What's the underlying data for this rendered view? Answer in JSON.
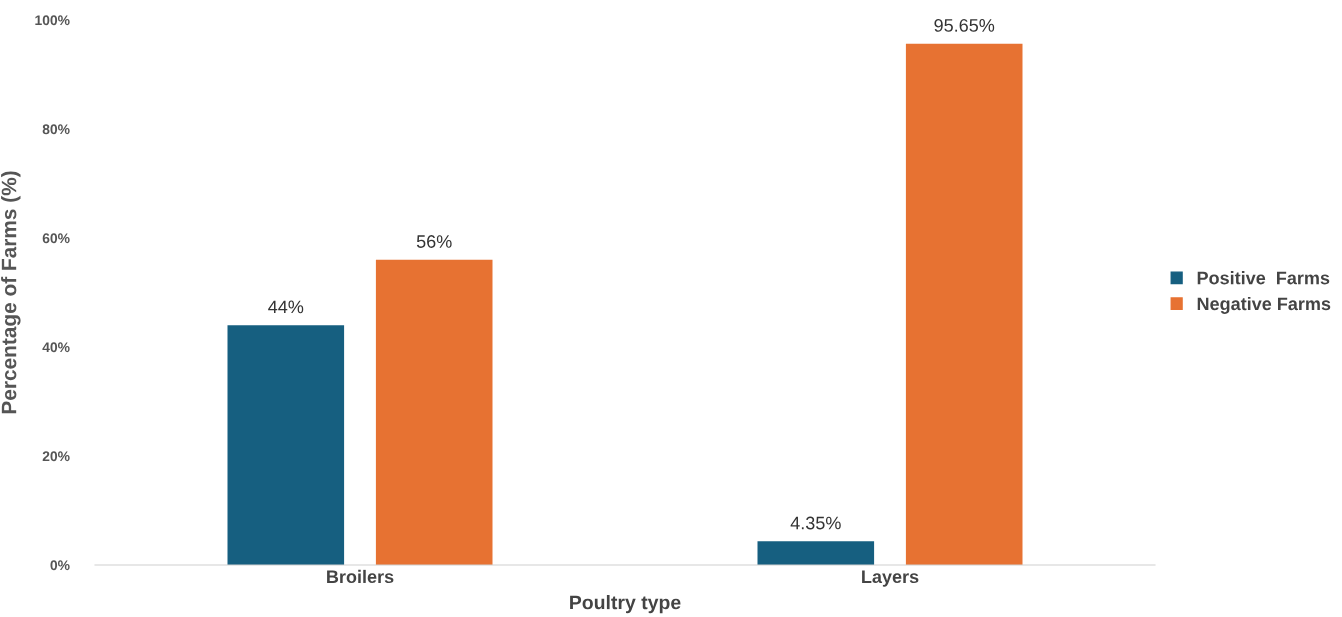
{
  "chart_data": {
    "type": "bar",
    "xlabel": "Poultry type",
    "ylabel": "Percentage of Farms (%)",
    "categories": [
      "Broilers",
      "Layers"
    ],
    "series": [
      {
        "name": "Positive  Farms",
        "color": "#165f80",
        "values": [
          44,
          4.35
        ],
        "value_labels": [
          "44%",
          "4.35%"
        ]
      },
      {
        "name": "Negative Farms",
        "color": "#e77232",
        "values": [
          56,
          95.65
        ],
        "value_labels": [
          "56%",
          "95.65%"
        ]
      }
    ],
    "ylim": [
      0,
      100
    ],
    "yticks": [
      {
        "value": 0,
        "label": "0%"
      },
      {
        "value": 20,
        "label": "20%"
      },
      {
        "value": 40,
        "label": "40%"
      },
      {
        "value": 60,
        "label": "60%"
      },
      {
        "value": 80,
        "label": "80%"
      },
      {
        "value": 100,
        "label": "100%"
      }
    ],
    "grid": false,
    "legend": "right"
  }
}
